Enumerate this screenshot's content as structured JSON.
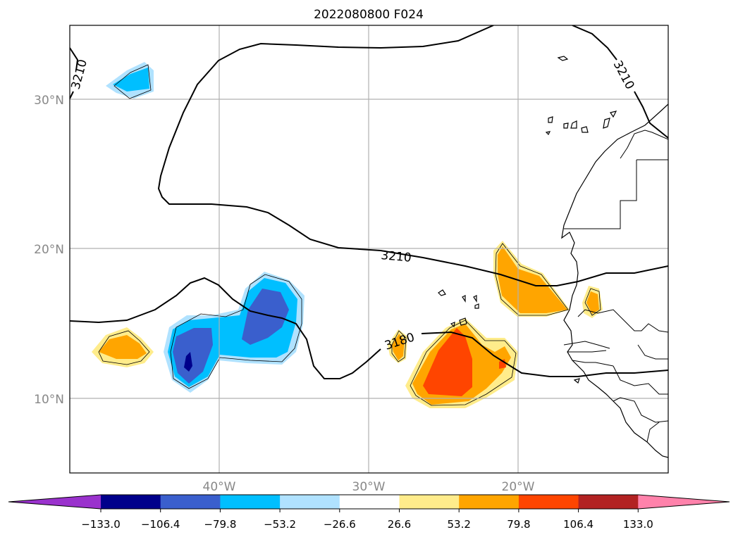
{
  "title": "2022080800 F024",
  "lat_labels": [
    "30°N",
    "20°N",
    "10°N"
  ],
  "lon_labels": [
    "40°W",
    "30°W",
    "20°W"
  ],
  "contour_labels": [
    "3210",
    "3210",
    "3210",
    "3180"
  ],
  "colorbar": {
    "ticks": [
      "−133.0",
      "−106.4",
      "−79.8",
      "−53.2",
      "−26.6",
      "26.6",
      "53.2",
      "79.8",
      "106.4",
      "133.0"
    ],
    "colors": [
      "#9a32cd",
      "#00008b",
      "#3a5fcd",
      "#00bfff",
      "#b0e2ff",
      "#ffffff",
      "#ffec8b",
      "#ffa500",
      "#ff4500",
      "#b22222",
      "#ff82ab"
    ]
  },
  "icons": [
    "map-frame-icon"
  ]
}
